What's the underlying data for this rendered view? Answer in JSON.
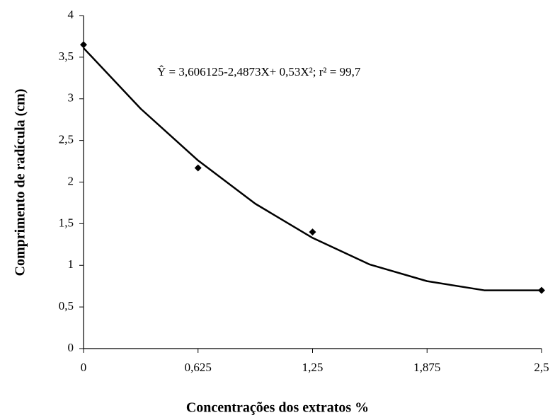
{
  "chart_data": {
    "type": "scatter",
    "x_label": "Concentrações dos extratos %",
    "y_label": "Comprimento de radícula (cm)",
    "annotation": "Ŷ = 3,606125-2,4873X+ 0,53X²;  r² = 99,7",
    "color": "#000000",
    "points": {
      "x": [
        0,
        0.625,
        1.25,
        2.5
      ],
      "y": [
        3.65,
        2.17,
        1.4,
        0.7
      ]
    },
    "curve": {
      "x": [
        0,
        0.3125,
        0.625,
        0.9375,
        1.25,
        1.5625,
        1.875,
        2.1875,
        2.5
      ],
      "y": [
        3.61,
        2.88,
        2.26,
        1.74,
        1.33,
        1.01,
        0.81,
        0.7,
        0.7
      ]
    },
    "xlim": [
      0,
      2.5
    ],
    "xticks": [
      0,
      {
        "value": 0.625,
        "label": "0,625"
      },
      {
        "value": 1.25,
        "label": "1,25"
      },
      {
        "value": 1.875,
        "label": "1,875"
      },
      {
        "value": 2.5,
        "label": "2,5"
      }
    ],
    "ylim": [
      0,
      4
    ],
    "yticks": [
      0,
      {
        "value": 0.5,
        "label": "0,5"
      },
      1,
      {
        "value": 1.5,
        "label": "1,5"
      },
      2,
      {
        "value": 2.5,
        "label": "2,5"
      },
      3,
      {
        "value": 3.5,
        "label": "3,5"
      },
      4
    ]
  }
}
